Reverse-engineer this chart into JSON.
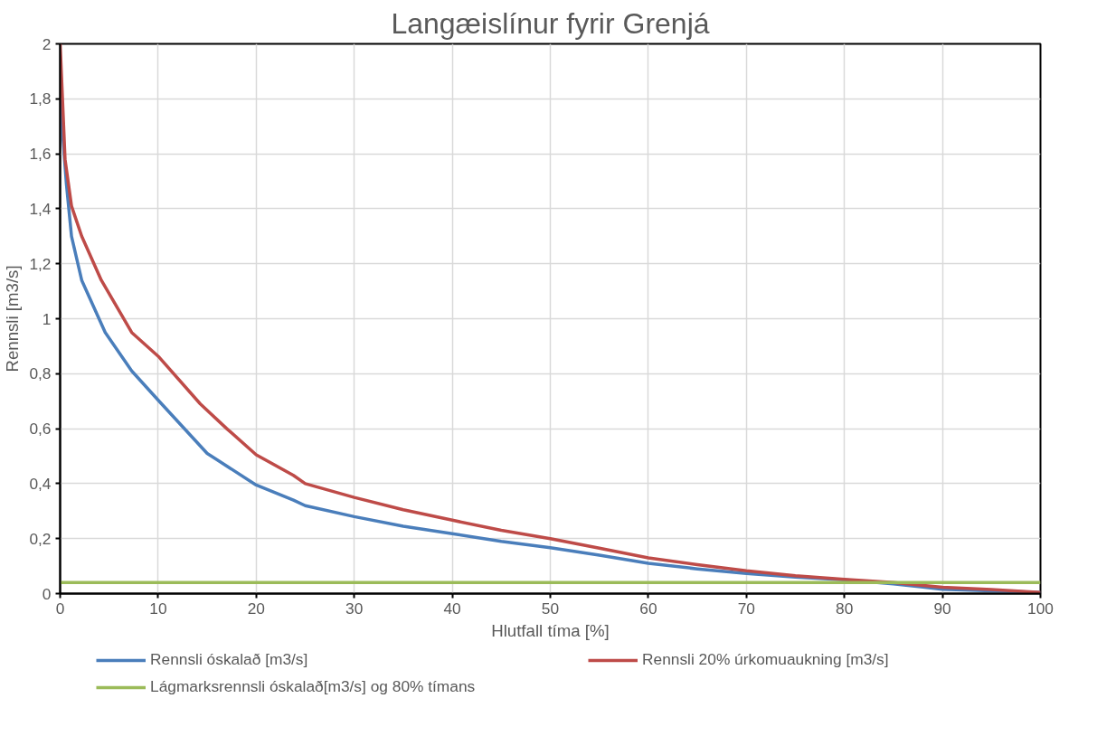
{
  "chart_data": {
    "type": "line",
    "title": "Langæislínur fyrir Grenjá",
    "xlabel": "Hlutfall tíma [%]",
    "ylabel": "Rennsli [m3/s]",
    "xlim": [
      0,
      100
    ],
    "xticks": [
      0,
      10,
      20,
      30,
      40,
      50,
      60,
      70,
      80,
      90,
      100
    ],
    "ylim": [
      0,
      2
    ],
    "yticks": [
      0,
      {
        "value": 0.2,
        "label": "0,2"
      },
      {
        "value": 0.4,
        "label": "0,4"
      },
      {
        "value": 0.6,
        "label": "0,6"
      },
      {
        "value": 0.8,
        "label": "0,8"
      },
      1,
      {
        "value": 1.2,
        "label": "1,2"
      },
      {
        "value": 1.4,
        "label": "1,4"
      },
      {
        "value": 1.6,
        "label": "1,6"
      },
      {
        "value": 1.8,
        "label": "1,8"
      },
      2
    ],
    "grid": true,
    "legend": "bottom",
    "marker": "none",
    "line_style": "solid",
    "series": [
      {
        "name": "Rennsli óskalað [m3/s]",
        "color": "#4a7ebb",
        "x": [
          0,
          0.3,
          0.64,
          1.16,
          2.2,
          4.6,
          7.3,
          10.1,
          15,
          20,
          23.8,
          25,
          30,
          35,
          40,
          45,
          50,
          55,
          60,
          65,
          70,
          75,
          80,
          85,
          90,
          95,
          100
        ],
        "values": [
          1.8,
          1.65,
          1.49,
          1.3,
          1.14,
          0.95,
          0.81,
          0.7,
          0.51,
          0.395,
          0.34,
          0.32,
          0.28,
          0.245,
          0.218,
          0.19,
          0.167,
          0.14,
          0.11,
          0.09,
          0.073,
          0.06,
          0.05,
          0.035,
          0.016,
          0.01,
          0.004
        ]
      },
      {
        "name": "Rennsli 20% úrkomuaukning [m3/s]",
        "color": "#be4b48",
        "x": [
          0,
          0.5,
          1.16,
          2.2,
          4.2,
          7.3,
          10.1,
          14.3,
          17,
          20,
          23.8,
          25,
          30,
          35,
          40,
          45,
          50,
          55,
          60,
          65,
          70,
          75,
          80,
          85,
          90,
          95,
          100
        ],
        "values": [
          2,
          1.58,
          1.41,
          1.3,
          1.14,
          0.95,
          0.86,
          0.69,
          0.6,
          0.505,
          0.43,
          0.4,
          0.35,
          0.305,
          0.267,
          0.23,
          0.2,
          0.165,
          0.13,
          0.105,
          0.083,
          0.065,
          0.052,
          0.04,
          0.023,
          0.015,
          0.004
        ]
      },
      {
        "name": "Lágmarksrennsli óskalað[m3/s] og 80% tímans",
        "color": "#9bbb59",
        "x": [
          0,
          100
        ],
        "values": [
          0.04,
          0.04
        ]
      }
    ]
  }
}
